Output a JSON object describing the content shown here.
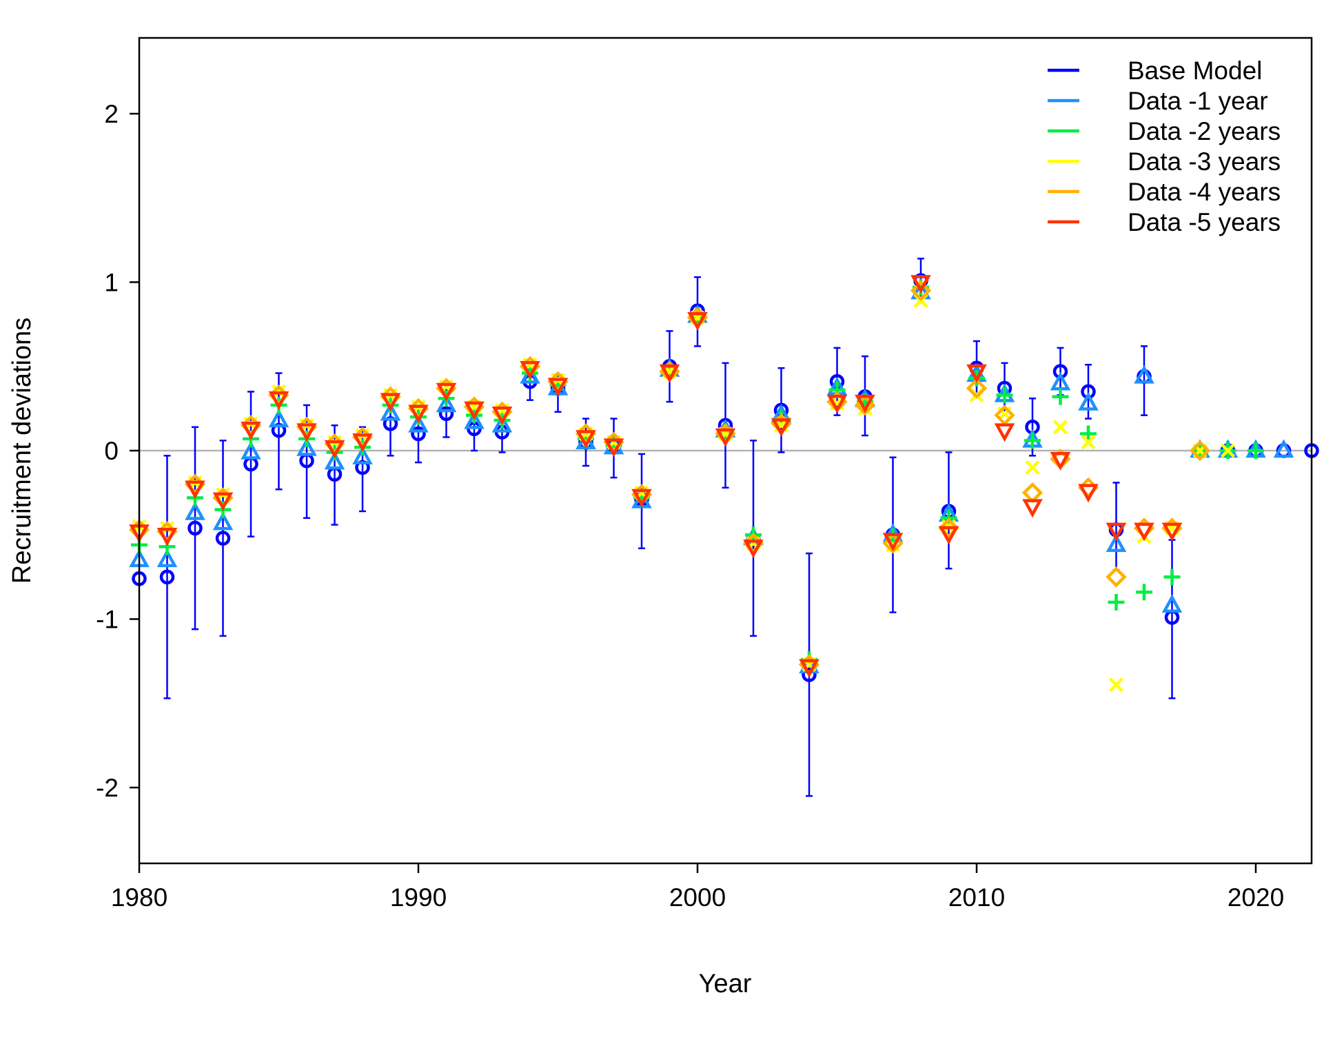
{
  "chart_data": {
    "type": "scatter",
    "xlabel": "Year",
    "ylabel": "Recruitment deviations",
    "xlim": [
      1980,
      2022
    ],
    "ylim": [
      -2.45,
      2.45
    ],
    "x_ticks": [
      1980,
      1990,
      2000,
      2010,
      2020
    ],
    "y_ticks": [
      -2,
      -1,
      0,
      1,
      2
    ],
    "x_tick_labels": [
      "1980",
      "1990",
      "2000",
      "2010",
      "2020"
    ],
    "y_tick_labels": [
      "-2",
      "-1",
      "0",
      "1",
      "2"
    ],
    "zero_line": true,
    "grid": false,
    "legend_position": "top-right",
    "series": [
      {
        "name": "Base Model",
        "color": "#0000ff",
        "marker": "circle",
        "points": [
          [
            1980,
            -0.76
          ],
          [
            1981,
            -0.75
          ],
          [
            1982,
            -0.46
          ],
          [
            1983,
            -0.52
          ],
          [
            1984,
            -0.08
          ],
          [
            1985,
            0.12
          ],
          [
            1986,
            -0.06
          ],
          [
            1987,
            -0.14
          ],
          [
            1988,
            -0.1
          ],
          [
            1989,
            0.16
          ],
          [
            1990,
            0.1
          ],
          [
            1991,
            0.22
          ],
          [
            1992,
            0.13
          ],
          [
            1993,
            0.11
          ],
          [
            1994,
            0.41
          ],
          [
            1995,
            0.37
          ],
          [
            1996,
            0.05
          ],
          [
            1997,
            0.02
          ],
          [
            1998,
            -0.29
          ],
          [
            1999,
            0.5
          ],
          [
            2000,
            0.83
          ],
          [
            2001,
            0.15
          ],
          [
            2002,
            -0.53
          ],
          [
            2003,
            0.24
          ],
          [
            2004,
            -1.33
          ],
          [
            2005,
            0.41
          ],
          [
            2006,
            0.32
          ],
          [
            2007,
            -0.5
          ],
          [
            2008,
            1.01
          ],
          [
            2009,
            -0.36
          ],
          [
            2010,
            0.49
          ],
          [
            2011,
            0.37
          ],
          [
            2012,
            0.14
          ],
          [
            2013,
            0.47
          ],
          [
            2014,
            0.35
          ],
          [
            2015,
            -0.47
          ],
          [
            2016,
            0.44
          ],
          [
            2017,
            -0.99
          ],
          [
            2018,
            0.0
          ],
          [
            2019,
            0.0
          ],
          [
            2020,
            0.0
          ],
          [
            2021,
            0.0
          ],
          [
            2022,
            0.0
          ]
        ],
        "error_bars": [
          [
            1981,
            -1.47,
            -0.03
          ],
          [
            1982,
            -1.06,
            0.14
          ],
          [
            1983,
            -1.1,
            0.06
          ],
          [
            1984,
            -0.51,
            0.35
          ],
          [
            1985,
            -0.23,
            0.46
          ],
          [
            1986,
            -0.4,
            0.27
          ],
          [
            1987,
            -0.44,
            0.15
          ],
          [
            1988,
            -0.36,
            0.14
          ],
          [
            1989,
            -0.03,
            0.33
          ],
          [
            1990,
            -0.07,
            0.27
          ],
          [
            1991,
            0.08,
            0.36
          ],
          [
            1992,
            0.0,
            0.27
          ],
          [
            1993,
            -0.01,
            0.23
          ],
          [
            1994,
            0.3,
            0.52
          ],
          [
            1995,
            0.23,
            0.45
          ],
          [
            1996,
            -0.09,
            0.19
          ],
          [
            1997,
            -0.16,
            0.19
          ],
          [
            1998,
            -0.58,
            -0.02
          ],
          [
            1999,
            0.29,
            0.71
          ],
          [
            2000,
            0.62,
            1.03
          ],
          [
            2001,
            -0.22,
            0.52
          ],
          [
            2002,
            -1.1,
            0.06
          ],
          [
            2003,
            -0.01,
            0.49
          ],
          [
            2004,
            -2.05,
            -0.61
          ],
          [
            2005,
            0.21,
            0.61
          ],
          [
            2006,
            0.09,
            0.56
          ],
          [
            2007,
            -0.96,
            -0.04
          ],
          [
            2008,
            0.88,
            1.14
          ],
          [
            2009,
            -0.7,
            -0.01
          ],
          [
            2010,
            0.33,
            0.65
          ],
          [
            2011,
            0.21,
            0.52
          ],
          [
            2012,
            -0.03,
            0.31
          ],
          [
            2013,
            0.33,
            0.61
          ],
          [
            2014,
            0.19,
            0.51
          ],
          [
            2015,
            -0.71,
            -0.19
          ],
          [
            2016,
            0.21,
            0.62
          ],
          [
            2017,
            -1.47,
            -0.53
          ]
        ]
      },
      {
        "name": "Data -1 year",
        "color": "#1e90ff",
        "marker": "triangle-up",
        "points": [
          [
            1980,
            -0.65
          ],
          [
            1981,
            -0.65
          ],
          [
            1982,
            -0.37
          ],
          [
            1983,
            -0.43
          ],
          [
            1984,
            -0.01
          ],
          [
            1985,
            0.18
          ],
          [
            1986,
            0.01
          ],
          [
            1987,
            -0.07
          ],
          [
            1988,
            -0.04
          ],
          [
            1989,
            0.22
          ],
          [
            1990,
            0.15
          ],
          [
            1991,
            0.27
          ],
          [
            1992,
            0.17
          ],
          [
            1993,
            0.15
          ],
          [
            1994,
            0.44
          ],
          [
            1995,
            0.37
          ],
          [
            1996,
            0.05
          ],
          [
            1997,
            0.02
          ],
          [
            1998,
            -0.3
          ],
          [
            1999,
            0.48
          ],
          [
            2000,
            0.8
          ],
          [
            2001,
            0.12
          ],
          [
            2002,
            -0.52
          ],
          [
            2003,
            0.21
          ],
          [
            2004,
            -1.28
          ],
          [
            2005,
            0.37
          ],
          [
            2006,
            0.3
          ],
          [
            2007,
            -0.5
          ],
          [
            2008,
            0.94
          ],
          [
            2009,
            -0.38
          ],
          [
            2010,
            0.45
          ],
          [
            2011,
            0.33
          ],
          [
            2012,
            0.06
          ],
          [
            2013,
            0.4
          ],
          [
            2014,
            0.28
          ],
          [
            2015,
            -0.56
          ],
          [
            2016,
            0.44
          ],
          [
            2017,
            -0.92
          ],
          [
            2018,
            0.0
          ],
          [
            2019,
            0.0
          ],
          [
            2020,
            0.0
          ],
          [
            2021,
            0.0
          ]
        ]
      },
      {
        "name": "Data -2 years",
        "color": "#00ee44",
        "marker": "plus",
        "points": [
          [
            1980,
            -0.56
          ],
          [
            1981,
            -0.57
          ],
          [
            1982,
            -0.28
          ],
          [
            1983,
            -0.35
          ],
          [
            1984,
            0.07
          ],
          [
            1985,
            0.27
          ],
          [
            1986,
            0.07
          ],
          [
            1987,
            -0.01
          ],
          [
            1988,
            0.02
          ],
          [
            1989,
            0.27
          ],
          [
            1990,
            0.2
          ],
          [
            1991,
            0.31
          ],
          [
            1992,
            0.21
          ],
          [
            1993,
            0.18
          ],
          [
            1994,
            0.46
          ],
          [
            1995,
            0.39
          ],
          [
            1996,
            0.07
          ],
          [
            1997,
            0.03
          ],
          [
            1998,
            -0.28
          ],
          [
            1999,
            0.47
          ],
          [
            2000,
            0.79
          ],
          [
            2001,
            0.11
          ],
          [
            2002,
            -0.5
          ],
          [
            2003,
            0.19
          ],
          [
            2004,
            -1.24
          ],
          [
            2005,
            0.36
          ],
          [
            2006,
            0.29
          ],
          [
            2007,
            -0.51
          ],
          [
            2008,
            0.97
          ],
          [
            2009,
            -0.4
          ],
          [
            2010,
            0.43
          ],
          [
            2011,
            0.33
          ],
          [
            2012,
            0.06
          ],
          [
            2013,
            0.32
          ],
          [
            2014,
            0.1
          ],
          [
            2015,
            -0.9
          ],
          [
            2016,
            -0.84
          ],
          [
            2017,
            -0.75
          ],
          [
            2018,
            0.0
          ],
          [
            2019,
            0.0
          ],
          [
            2020,
            0.0
          ]
        ]
      },
      {
        "name": "Data -3 years",
        "color": "#ffff00",
        "marker": "cross",
        "points": [
          [
            1980,
            -0.45
          ],
          [
            1981,
            -0.46
          ],
          [
            1982,
            -0.19
          ],
          [
            1983,
            -0.26
          ],
          [
            1984,
            0.16
          ],
          [
            1985,
            0.35
          ],
          [
            1986,
            0.15
          ],
          [
            1987,
            0.05
          ],
          [
            1988,
            0.09
          ],
          [
            1989,
            0.33
          ],
          [
            1990,
            0.26
          ],
          [
            1991,
            0.38
          ],
          [
            1992,
            0.26
          ],
          [
            1993,
            0.24
          ],
          [
            1994,
            0.51
          ],
          [
            1995,
            0.42
          ],
          [
            1996,
            0.1
          ],
          [
            1997,
            0.05
          ],
          [
            1998,
            -0.25
          ],
          [
            1999,
            0.47
          ],
          [
            2000,
            0.79
          ],
          [
            2001,
            0.1
          ],
          [
            2002,
            -0.55
          ],
          [
            2003,
            0.15
          ],
          [
            2004,
            -1.27
          ],
          [
            2005,
            0.28
          ],
          [
            2006,
            0.25
          ],
          [
            2007,
            -0.56
          ],
          [
            2008,
            0.89
          ],
          [
            2009,
            -0.45
          ],
          [
            2010,
            0.33
          ],
          [
            2011,
            0.22
          ],
          [
            2012,
            -0.1
          ],
          [
            2013,
            0.14
          ],
          [
            2014,
            0.05
          ],
          [
            2015,
            -1.39
          ],
          [
            2016,
            -0.51
          ],
          [
            2017,
            -0.46
          ],
          [
            2018,
            0.0
          ],
          [
            2019,
            0.0
          ]
        ]
      },
      {
        "name": "Data -4 years",
        "color": "#ffb000",
        "marker": "diamond",
        "points": [
          [
            1980,
            -0.47
          ],
          [
            1981,
            -0.48
          ],
          [
            1982,
            -0.2
          ],
          [
            1983,
            -0.28
          ],
          [
            1984,
            0.15
          ],
          [
            1985,
            0.33
          ],
          [
            1986,
            0.14
          ],
          [
            1987,
            0.04
          ],
          [
            1988,
            0.08
          ],
          [
            1989,
            0.32
          ],
          [
            1990,
            0.25
          ],
          [
            1991,
            0.37
          ],
          [
            1992,
            0.26
          ],
          [
            1993,
            0.23
          ],
          [
            1994,
            0.5
          ],
          [
            1995,
            0.41
          ],
          [
            1996,
            0.1
          ],
          [
            1997,
            0.05
          ],
          [
            1998,
            -0.26
          ],
          [
            1999,
            0.47
          ],
          [
            2000,
            0.79
          ],
          [
            2001,
            0.1
          ],
          [
            2002,
            -0.55
          ],
          [
            2003,
            0.16
          ],
          [
            2004,
            -1.27
          ],
          [
            2005,
            0.29
          ],
          [
            2006,
            0.27
          ],
          [
            2007,
            -0.55
          ],
          [
            2008,
            0.95
          ],
          [
            2009,
            -0.46
          ],
          [
            2010,
            0.37
          ],
          [
            2011,
            0.21
          ],
          [
            2012,
            -0.25
          ],
          [
            2013,
            -0.05
          ],
          [
            2014,
            -0.22
          ],
          [
            2015,
            -0.75
          ],
          [
            2016,
            -0.46
          ],
          [
            2017,
            -0.46
          ],
          [
            2018,
            0.0
          ]
        ]
      },
      {
        "name": "Data -5 years",
        "color": "#ff3300",
        "marker": "triangle-down",
        "points": [
          [
            1980,
            -0.48
          ],
          [
            1981,
            -0.5
          ],
          [
            1982,
            -0.22
          ],
          [
            1983,
            -0.29
          ],
          [
            1984,
            0.13
          ],
          [
            1985,
            0.31
          ],
          [
            1986,
            0.12
          ],
          [
            1987,
            0.02
          ],
          [
            1988,
            0.06
          ],
          [
            1989,
            0.3
          ],
          [
            1990,
            0.23
          ],
          [
            1991,
            0.36
          ],
          [
            1992,
            0.25
          ],
          [
            1993,
            0.22
          ],
          [
            1994,
            0.49
          ],
          [
            1995,
            0.39
          ],
          [
            1996,
            0.08
          ],
          [
            1997,
            0.03
          ],
          [
            1998,
            -0.27
          ],
          [
            1999,
            0.47
          ],
          [
            2000,
            0.78
          ],
          [
            2001,
            0.09
          ],
          [
            2002,
            -0.57
          ],
          [
            2003,
            0.15
          ],
          [
            2004,
            -1.28
          ],
          [
            2005,
            0.29
          ],
          [
            2006,
            0.29
          ],
          [
            2007,
            -0.53
          ],
          [
            2008,
            1.0
          ],
          [
            2009,
            -0.49
          ],
          [
            2010,
            0.47
          ],
          [
            2011,
            0.12
          ],
          [
            2012,
            -0.33
          ],
          [
            2013,
            -0.05
          ],
          [
            2014,
            -0.24
          ],
          [
            2015,
            -0.47
          ],
          [
            2016,
            -0.47
          ],
          [
            2017,
            -0.47
          ]
        ]
      }
    ]
  }
}
